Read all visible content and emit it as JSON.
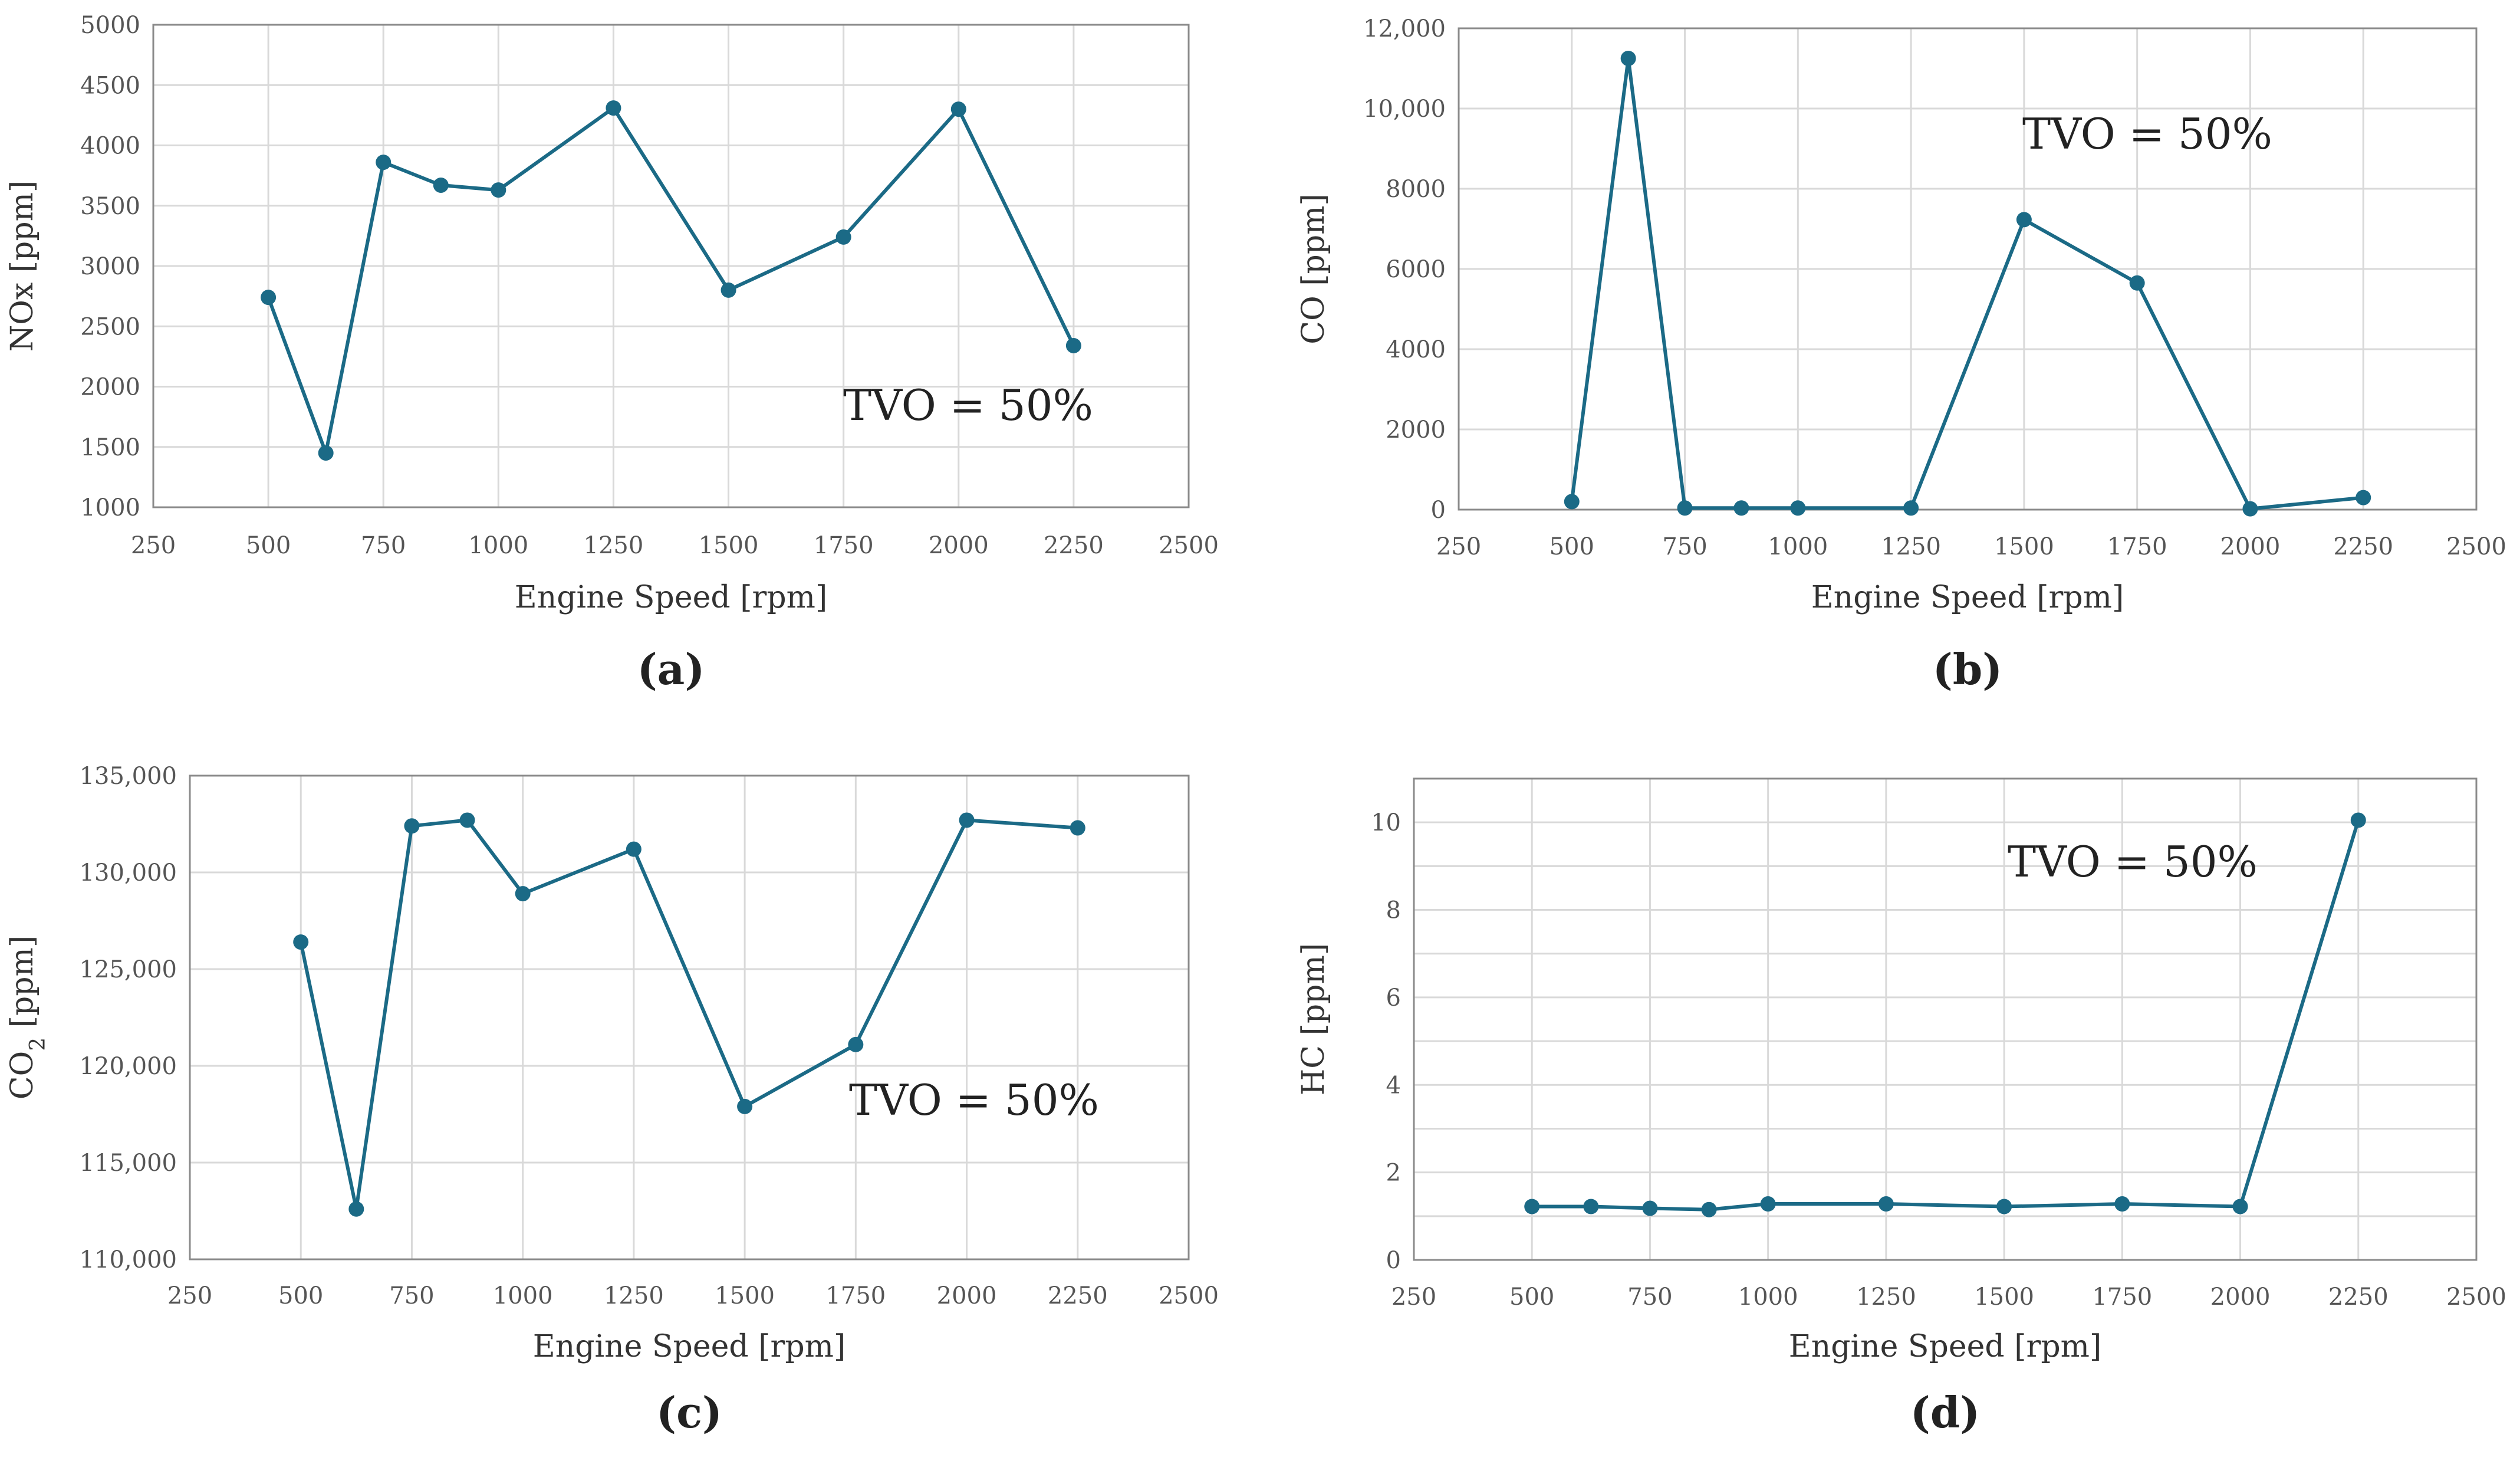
{
  "colors": {
    "series": "#1B6A86",
    "grid": "#d9d9d9",
    "frame": "#8a8a8a"
  },
  "chart_data": [
    {
      "type": "line",
      "panel_label": "(a)",
      "xlabel": "Engine Speed  [rpm]",
      "ylabel": "NOx  [ppm]",
      "annotation": "TVO = 50%",
      "xlim": [
        250,
        2500
      ],
      "ylim": [
        1000,
        5000
      ],
      "xticks": [
        250,
        500,
        750,
        1000,
        1250,
        1500,
        1750,
        2000,
        2250,
        2500
      ],
      "xtick_labels": [
        "250",
        "500",
        "750",
        "1000",
        "1250",
        "1500",
        "1750",
        "2000",
        "2250",
        "2500"
      ],
      "yticks": [
        1000,
        1500,
        2000,
        2500,
        3000,
        3500,
        4000,
        4500,
        5000
      ],
      "ytick_labels": [
        "1000",
        "1500",
        "2000",
        "2500",
        "3000",
        "3500",
        "4000",
        "4500",
        "5000"
      ],
      "series": [
        {
          "name": "NOx",
          "x": [
            500,
            625,
            750,
            875,
            1000,
            1250,
            1500,
            1750,
            2000,
            2250
          ],
          "y": [
            2740,
            1450,
            3860,
            3670,
            3630,
            4310,
            2800,
            3240,
            4300,
            2340
          ]
        }
      ]
    },
    {
      "type": "line",
      "panel_label": "(b)",
      "xlabel": "Engine Speed  [rpm]",
      "ylabel": "CO  [ppm]",
      "annotation": "TVO = 50%",
      "xlim": [
        250,
        2500
      ],
      "ylim": [
        0,
        12000
      ],
      "xticks": [
        250,
        500,
        750,
        1000,
        1250,
        1500,
        1750,
        2000,
        2250,
        2500
      ],
      "xtick_labels": [
        "250",
        "500",
        "750",
        "1000",
        "1250",
        "1500",
        "1750",
        "2000",
        "2250",
        "2500"
      ],
      "yticks": [
        0,
        2000,
        4000,
        6000,
        8000,
        10000,
        12000
      ],
      "ytick_labels": [
        "0",
        "2000",
        "4000",
        "6000",
        "8000",
        "10,000",
        "12,000"
      ],
      "series": [
        {
          "name": "CO",
          "x": [
            500,
            625,
            750,
            875,
            1000,
            1250,
            1500,
            1750,
            2000,
            2250
          ],
          "y": [
            200,
            11250,
            40,
            40,
            40,
            40,
            7230,
            5650,
            20,
            300
          ]
        }
      ]
    },
    {
      "type": "line",
      "panel_label": "(c)",
      "xlabel": "Engine Speed  [rpm]",
      "ylabel": "CO",
      "ylabel_sub": "2",
      "ylabel_unit": "  [ppm]",
      "annotation": "TVO = 50%",
      "xlim": [
        250,
        2500
      ],
      "ylim": [
        110000,
        135000
      ],
      "xticks": [
        250,
        500,
        750,
        1000,
        1250,
        1500,
        1750,
        2000,
        2250,
        2500
      ],
      "xtick_labels": [
        "250",
        "500",
        "750",
        "1000",
        "1250",
        "1500",
        "1750",
        "2000",
        "2250",
        "2500"
      ],
      "yticks": [
        110000,
        115000,
        120000,
        125000,
        130000,
        135000
      ],
      "ytick_labels": [
        "110,000",
        "115,000",
        "120,000",
        "125,000",
        "130,000",
        "135,000"
      ],
      "series": [
        {
          "name": "CO2",
          "x": [
            500,
            625,
            750,
            875,
            1000,
            1250,
            1500,
            1750,
            2000,
            2250
          ],
          "y": [
            126400,
            112600,
            132400,
            132700,
            128900,
            131200,
            117900,
            121100,
            132700,
            132300
          ]
        }
      ]
    },
    {
      "type": "line",
      "panel_label": "(d)",
      "xlabel": "Engine Speed  [rpm]",
      "ylabel": "HC  [ppm]",
      "annotation": "TVO = 50%",
      "xlim": [
        250,
        2500
      ],
      "ylim": [
        0,
        11
      ],
      "xticks": [
        250,
        500,
        750,
        1000,
        1250,
        1500,
        1750,
        2000,
        2250,
        2500
      ],
      "xtick_labels": [
        "250",
        "500",
        "750",
        "1000",
        "1250",
        "1500",
        "1750",
        "2000",
        "2250",
        "2500"
      ],
      "yticks": [
        0,
        2,
        4,
        6,
        8,
        10
      ],
      "ytick_labels": [
        "0",
        "2",
        "4",
        "6",
        "8",
        "10"
      ],
      "grid_lines_y": [
        0,
        1,
        2,
        3,
        4,
        5,
        6,
        7,
        8,
        9,
        10,
        11
      ],
      "series": [
        {
          "name": "HC",
          "x": [
            500,
            625,
            750,
            875,
            1000,
            1250,
            1500,
            1750,
            2000,
            2250
          ],
          "y": [
            1.22,
            1.22,
            1.18,
            1.15,
            1.28,
            1.28,
            1.22,
            1.28,
            1.22,
            10.05
          ]
        }
      ]
    }
  ]
}
